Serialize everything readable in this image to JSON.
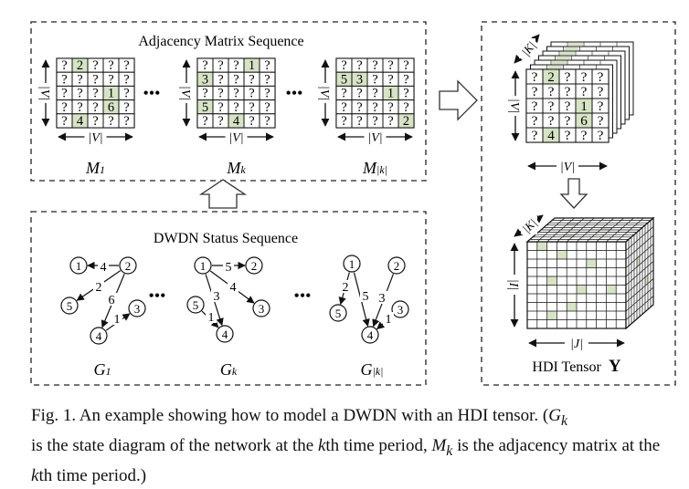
{
  "adjacency": {
    "title": "Adjacency Matrix Sequence",
    "axis_label": "|V|",
    "ellipsis": "•••",
    "cell_unknown": "?",
    "matrices": [
      {
        "label_main": "M",
        "label_sub": "1",
        "cells": [
          [
            "?",
            "2",
            "?",
            "?",
            "?"
          ],
          [
            "?",
            "?",
            "?",
            "?",
            "?"
          ],
          [
            "?",
            "?",
            "?",
            "1",
            "?"
          ],
          [
            "?",
            "?",
            "?",
            "6",
            "?"
          ],
          [
            "?",
            "4",
            "?",
            "?",
            "?"
          ]
        ]
      },
      {
        "label_main": "M",
        "label_sub": "k",
        "cells": [
          [
            "?",
            "?",
            "?",
            "1",
            "?"
          ],
          [
            "3",
            "?",
            "?",
            "?",
            "?"
          ],
          [
            "?",
            "?",
            "?",
            "?",
            "?"
          ],
          [
            "5",
            "?",
            "?",
            "?",
            "?"
          ],
          [
            "?",
            "?",
            "4",
            "?",
            "?"
          ]
        ]
      },
      {
        "label_main": "M",
        "label_sub": "|k|",
        "cells": [
          [
            "?",
            "?",
            "?",
            "?",
            "?"
          ],
          [
            "5",
            "3",
            "?",
            "?",
            "?"
          ],
          [
            "?",
            "?",
            "?",
            "1",
            "?"
          ],
          [
            "?",
            "?",
            "?",
            "?",
            "?"
          ],
          [
            "?",
            "?",
            "?",
            "?",
            "2"
          ]
        ]
      }
    ]
  },
  "status": {
    "title": "DWDN Status Sequence",
    "ellipsis": "•••",
    "graphs": [
      {
        "label_main": "G",
        "label_sub": "1",
        "nodes": [
          "1",
          "2",
          "5",
          "3",
          "4"
        ],
        "edge_weights": [
          "4",
          "2",
          "6",
          "1"
        ]
      },
      {
        "label_main": "G",
        "label_sub": "k",
        "nodes": [
          "1",
          "2",
          "5",
          "3",
          "4"
        ],
        "edge_weights": [
          "5",
          "4",
          "3",
          "1"
        ]
      },
      {
        "label_main": "G",
        "label_sub": "|k|",
        "nodes": [
          "1",
          "2",
          "5",
          "3",
          "4"
        ],
        "edge_weights": [
          "2",
          "5",
          "3",
          "1"
        ]
      }
    ]
  },
  "tensor_stack": {
    "depth_label": "|K|",
    "axis_label": "|V|",
    "cells": [
      [
        "?",
        "2",
        "?",
        "?",
        "?"
      ],
      [
        "?",
        "?",
        "?",
        "?",
        "?"
      ],
      [
        "?",
        "?",
        "?",
        "1",
        "?"
      ],
      [
        "?",
        "?",
        "?",
        "6",
        "?"
      ],
      [
        "?",
        "4",
        "?",
        "?",
        "?"
      ]
    ]
  },
  "hdi": {
    "k_label": "|K|",
    "i_label": "|I|",
    "j_label": "|J|",
    "title": "HDI Tensor",
    "symbol": "Y"
  },
  "caption": {
    "p1": "Fig. 1.   An example showing how to model a DWDN with an HDI tensor. (",
    "g": "G",
    "k1": "k",
    "p2": "is the state diagram of the network at the ",
    "k2": "k",
    "p3": "th time period, ",
    "m": "M",
    "k3": "k",
    "p4": " is the adjacency matrix at the ",
    "k4": "k",
    "p5": "th time period.)"
  },
  "colors": {
    "highlight": "#d6e3c4",
    "line": "#111111"
  }
}
